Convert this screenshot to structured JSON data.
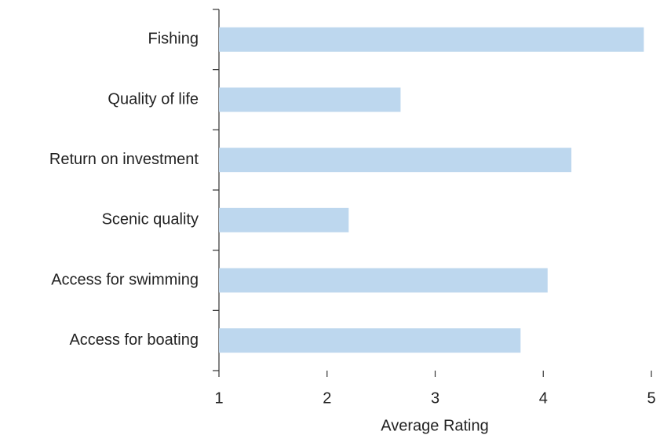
{
  "chart_data": {
    "type": "hbar",
    "categories": [
      "Fishing",
      "Quality of life",
      "Return on investment",
      "Scenic quality",
      "Access for swimming",
      "Access for boating"
    ],
    "values": [
      4.93,
      2.68,
      4.26,
      2.2,
      4.04,
      3.79
    ],
    "color": "#bdd7ee",
    "xlabel": "Average Rating",
    "xlim": [
      1,
      5
    ],
    "xticks": [
      1,
      2,
      3,
      4,
      5
    ],
    "grid": false
  }
}
